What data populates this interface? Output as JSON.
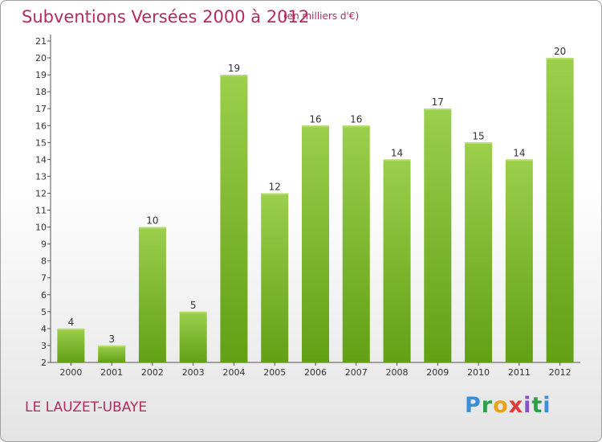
{
  "title": "Subventions Versées 2000 à 2012",
  "subtitle": "(en milliers d'€)",
  "commune": "LE LAUZET-UBAYE",
  "logo": {
    "letters": [
      "P",
      "r",
      "o",
      "x",
      "i",
      "t",
      "i"
    ],
    "colors": [
      "#3a8fd8",
      "#2e9e4a",
      "#e8a317",
      "#e03a3a",
      "#8a4fc7",
      "#2e9e4a",
      "#3a8fd8"
    ]
  },
  "chart_data": {
    "type": "bar",
    "title": "Subventions Versées 2000 à 2012",
    "subtitle": "(en milliers d'€)",
    "categories": [
      "2000",
      "2001",
      "2002",
      "2003",
      "2004",
      "2005",
      "2006",
      "2007",
      "2008",
      "2009",
      "2010",
      "2011",
      "2012"
    ],
    "values": [
      4,
      3,
      10,
      5,
      19,
      12,
      16,
      16,
      14,
      17,
      15,
      14,
      20
    ],
    "ylim": [
      2,
      21
    ],
    "yticks": [
      2,
      3,
      4,
      5,
      6,
      7,
      8,
      9,
      10,
      11,
      12,
      13,
      14,
      15,
      16,
      17,
      18,
      19,
      20,
      21
    ],
    "grid": false,
    "bar_color": "#86c232"
  }
}
